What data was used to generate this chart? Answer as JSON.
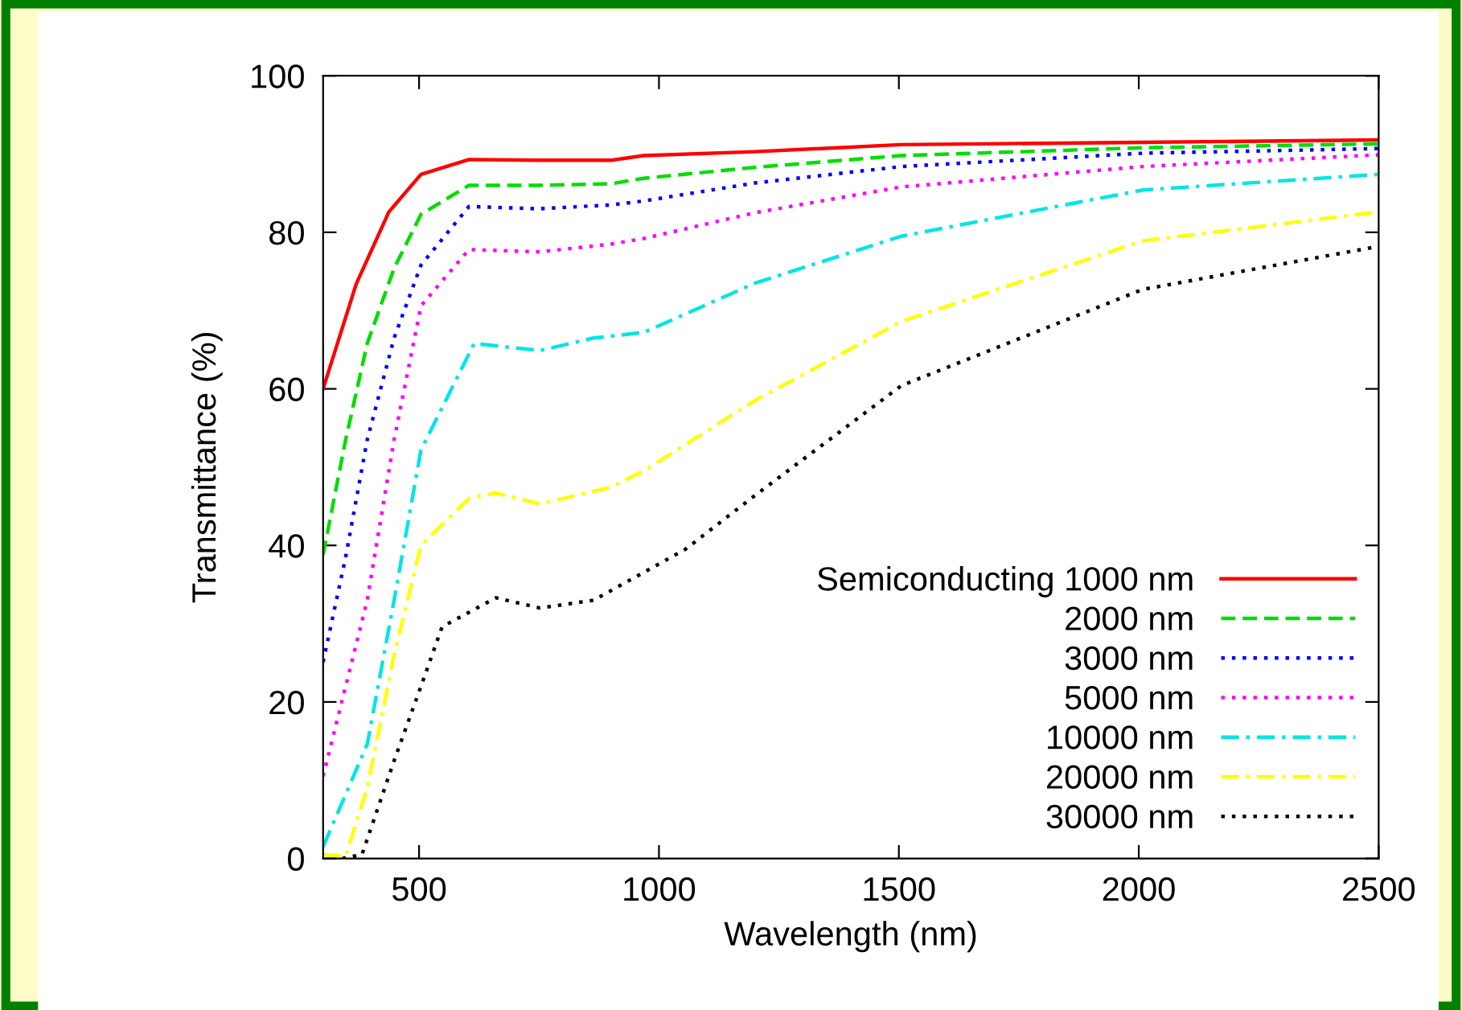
{
  "chart_data": {
    "type": "line",
    "xlabel": "Wavelength (nm)",
    "ylabel": "Transmittance (%)",
    "xlim": [
      300,
      2500
    ],
    "xticks": [
      500,
      1000,
      1500,
      2000,
      2500
    ],
    "ylim": [
      0,
      100
    ],
    "yticks": [
      0,
      20,
      40,
      60,
      80,
      100
    ],
    "grid": false,
    "legend": "bottom right",
    "marker": "none",
    "series": [
      {
        "name": "Semiconducting 1000 nm",
        "color": "#ff0000",
        "line_style": "solid",
        "x": [
          300,
          369,
          437,
          504,
          604,
          750,
          900,
          968,
          1200,
          1505,
          2008,
          2500
        ],
        "values": [
          60,
          73.4,
          82.6,
          87.4,
          89.3,
          89.2,
          89.2,
          89.8,
          90.3,
          91.2,
          91.5,
          91.8
        ]
      },
      {
        "name": "2000 nm",
        "color": "#00dd00",
        "line_style": "dashed",
        "x": [
          300,
          347,
          392,
          448,
          504,
          604,
          750,
          900,
          968,
          1200,
          1505,
          2008,
          2500
        ],
        "values": [
          38.8,
          53.5,
          65.8,
          75.4,
          82.3,
          86,
          86,
          86.2,
          86.9,
          88.3,
          89.8,
          90.8,
          91.3
        ]
      },
      {
        "name": "3000 nm",
        "color": "#0000ff",
        "line_style": "dotted",
        "x": [
          300,
          347,
          392,
          448,
          504,
          604,
          750,
          900,
          968,
          1200,
          1505,
          2008,
          2500
        ],
        "values": [
          25.1,
          38.5,
          53.5,
          66.5,
          75.8,
          83.3,
          83,
          83.5,
          84,
          86.3,
          88.4,
          90.1,
          90.7
        ]
      },
      {
        "name": "5000 nm",
        "color": "#ff00ff",
        "line_style": "dotted",
        "x": [
          300,
          392,
          448,
          504,
          604,
          752,
          900,
          968,
          1200,
          1505,
          2008,
          2500
        ],
        "values": [
          10.5,
          33,
          53.5,
          70.6,
          77.8,
          77.5,
          78.5,
          79.2,
          82.5,
          85.8,
          88.4,
          89.9
        ]
      },
      {
        "name": "10000 nm",
        "color": "#00e5e5",
        "line_style": "dashdot",
        "x": [
          300,
          392,
          448,
          504,
          615,
          752,
          864,
          968,
          1200,
          1505,
          2008,
          2500
        ],
        "values": [
          1.5,
          14.6,
          33,
          52.2,
          65.8,
          64.9,
          66.5,
          67.2,
          73.5,
          79.5,
          85.4,
          87.4
        ]
      },
      {
        "name": "20000 nm",
        "color": "#ffff00",
        "line_style": "dashdot",
        "x": [
          300,
          347,
          392,
          448,
          504,
          604,
          660,
          752,
          898,
          968,
          1200,
          1505,
          2008,
          2500
        ],
        "values": [
          0.5,
          0.3,
          9,
          26,
          40,
          46,
          46.7,
          45.3,
          47.4,
          49.5,
          58.5,
          68.6,
          78.9,
          82.6
        ]
      },
      {
        "name": "30000 nm",
        "color": "#000000",
        "line_style": "dotted",
        "x": [
          340,
          381,
          448,
          504,
          548,
          660,
          752,
          864,
          1055,
          1192,
          1505,
          2008,
          2500
        ],
        "values": [
          0,
          0.5,
          12.5,
          22,
          29.6,
          33.3,
          32,
          33,
          39.5,
          46,
          60.4,
          72.7,
          78.2
        ]
      }
    ]
  }
}
